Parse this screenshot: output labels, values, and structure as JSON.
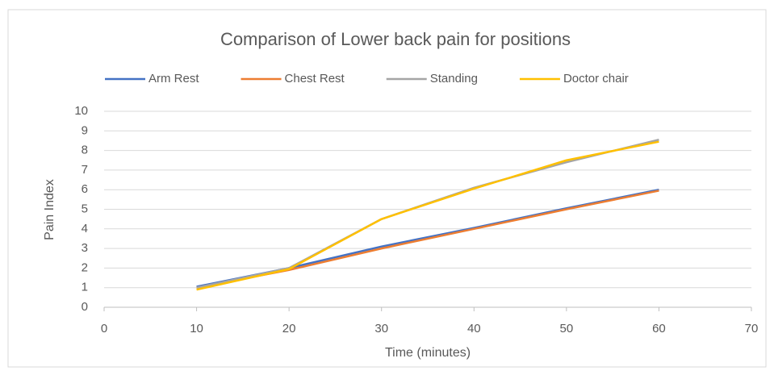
{
  "chart_data": {
    "type": "line",
    "title": "Comparison of Lower back pain for positions",
    "x_label": "Time (minutes)",
    "y_label": "Pain Index",
    "x": [
      10,
      20,
      30,
      40,
      50,
      60
    ],
    "series": [
      {
        "name": "Arm Rest",
        "color": "#4472c4",
        "values": [
          1.05,
          2,
          3.1,
          4.05,
          5.05,
          6
        ]
      },
      {
        "name": "Chest Rest",
        "color": "#ed7d31",
        "values": [
          1,
          1.9,
          3,
          4,
          5,
          5.95
        ]
      },
      {
        "name": "Standing",
        "color": "#a5a5a5",
        "values": [
          1,
          2,
          4.5,
          6.1,
          7.4,
          8.55
        ]
      },
      {
        "name": "Doctor chair",
        "color": "#ffc000",
        "values": [
          0.9,
          1.95,
          4.5,
          6.05,
          7.5,
          8.45
        ]
      }
    ],
    "xlim": [
      0,
      70
    ],
    "xticks": [
      0,
      10,
      20,
      30,
      40,
      50,
      60,
      70
    ],
    "ylim": [
      0,
      10
    ],
    "yticks": [
      0,
      1,
      2,
      3,
      4,
      5,
      6,
      7,
      8,
      9,
      10
    ],
    "grid": true,
    "legend": "top"
  }
}
